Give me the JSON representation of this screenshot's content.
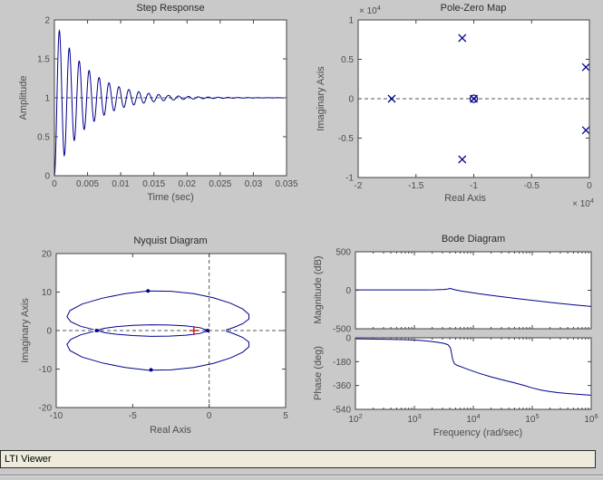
{
  "window": {
    "status_bar_text": "LTI Viewer"
  },
  "colors": {
    "figure_bg": "#c9c9c9",
    "plot_bg": "#ffffff",
    "axis": "#444444",
    "tick_text": "#4d4d4d",
    "title_text": "#2b2b2b",
    "curve": "#000090",
    "ref_line": "#555555",
    "critical_marker": "#cc2222"
  },
  "chart_data": [
    {
      "id": "step",
      "type": "line",
      "title": "Step Response",
      "xlabel": "Time (sec)",
      "ylabel": "Amplitude",
      "xlim": [
        0,
        0.035
      ],
      "ylim": [
        0,
        2
      ],
      "xticks": [
        0,
        0.005,
        0.01,
        0.015,
        0.02,
        0.025,
        0.03,
        0.035
      ],
      "xtick_labels": [
        "0",
        "0.005",
        "0.01",
        "0.015",
        "0.02",
        "0.025",
        "0.03",
        "0.035"
      ],
      "yticks": [
        0,
        0.5,
        1,
        1.5,
        2
      ],
      "ytick_labels": [
        "0",
        "0.5",
        "1",
        "1.5",
        "2"
      ],
      "ref_lines": [
        {
          "y": 1
        }
      ],
      "model": {
        "kind": "damped_step_response",
        "final_value": 1,
        "sigma": 200,
        "omega": 4200,
        "first_peak_value": 1.83,
        "first_peak_time": 0.001,
        "t_end": 0.035,
        "samples": 800
      }
    },
    {
      "id": "pzmap",
      "type": "scatter",
      "title": "Pole-Zero Map",
      "xlabel": "Real Axis",
      "ylabel": "Imaginary Axis",
      "axis_multiplier": {
        "text": "× 10",
        "exponent": "4"
      },
      "xlim": [
        -2,
        0
      ],
      "ylim": [
        -1,
        1
      ],
      "xticks": [
        -2,
        -1.5,
        -1,
        -0.5,
        0
      ],
      "xtick_labels": [
        "-2",
        "-1.5",
        "-1",
        "-0.5",
        "0"
      ],
      "yticks": [
        -1,
        -0.5,
        0,
        0.5,
        1
      ],
      "ytick_labels": [
        "-1",
        "-0.5",
        "0",
        "0.5",
        "1"
      ],
      "ref_lines": [
        {
          "y": 0
        }
      ],
      "poles": [
        [
          -1.71,
          0
        ],
        [
          -1.1,
          0.77
        ],
        [
          -1.1,
          -0.77
        ],
        [
          -1.0,
          0
        ],
        [
          -0.03,
          0.4
        ],
        [
          -0.03,
          -0.4
        ]
      ],
      "zeros": [
        [
          -1.0,
          0
        ]
      ]
    },
    {
      "id": "nyquist",
      "type": "line",
      "title": "Nyquist Diagram",
      "xlabel": "Real Axis",
      "ylabel": "Imaginary Axis",
      "xlim": [
        -10,
        5
      ],
      "ylim": [
        -20,
        20
      ],
      "xticks": [
        -10,
        -5,
        0,
        5
      ],
      "xtick_labels": [
        "-10",
        "-5",
        "0",
        "5"
      ],
      "yticks": [
        -20,
        -10,
        0,
        10,
        20
      ],
      "ytick_labels": [
        "-20",
        "-10",
        "0",
        "10",
        "20"
      ],
      "ref_lines": [
        {
          "x": 0
        },
        {
          "y": 0
        }
      ],
      "curves": [
        {
          "name": "outer-lobe-upper",
          "points": [
            [
              -7.55,
              0.25
            ],
            [
              -8.4,
              1.1
            ],
            [
              -9.05,
              2.3
            ],
            [
              -9.3,
              3.6
            ],
            [
              -9.1,
              5.2
            ],
            [
              -8.3,
              6.9
            ],
            [
              -7.0,
              8.4
            ],
            [
              -5.5,
              9.6
            ],
            [
              -4.0,
              10.3
            ],
            [
              -2.5,
              10.2
            ],
            [
              -1.0,
              9.6
            ],
            [
              0.3,
              8.5
            ],
            [
              1.4,
              7.1
            ],
            [
              2.2,
              5.6
            ],
            [
              2.6,
              4.2
            ],
            [
              2.6,
              3.0
            ],
            [
              2.2,
              1.8
            ],
            [
              1.6,
              0.8
            ],
            [
              1.1,
              0.15
            ]
          ]
        },
        {
          "name": "outer-lobe-lower",
          "points": [
            [
              -7.55,
              -0.25
            ],
            [
              -8.4,
              -1.1
            ],
            [
              -9.05,
              -2.3
            ],
            [
              -9.3,
              -3.6
            ],
            [
              -9.1,
              -5.2
            ],
            [
              -8.3,
              -6.9
            ],
            [
              -7.0,
              -8.4
            ],
            [
              -5.5,
              -9.6
            ],
            [
              -4.0,
              -10.3
            ],
            [
              -2.5,
              -10.2
            ],
            [
              -1.0,
              -9.6
            ],
            [
              0.3,
              -8.5
            ],
            [
              1.4,
              -7.1
            ],
            [
              2.2,
              -5.6
            ],
            [
              2.6,
              -4.2
            ],
            [
              2.6,
              -3.0
            ],
            [
              2.2,
              -1.8
            ],
            [
              1.6,
              -0.8
            ],
            [
              1.1,
              -0.15
            ]
          ]
        },
        {
          "name": "inner-loop",
          "points": [
            [
              -0.1,
              0.05
            ],
            [
              -0.6,
              0.75
            ],
            [
              -1.5,
              1.2
            ],
            [
              -2.6,
              1.45
            ],
            [
              -3.8,
              1.5
            ],
            [
              -5.0,
              1.35
            ],
            [
              -6.1,
              1.0
            ],
            [
              -6.9,
              0.55
            ],
            [
              -7.3,
              0.05
            ],
            [
              -6.9,
              -0.5
            ],
            [
              -6.1,
              -0.95
            ],
            [
              -5.0,
              -1.3
            ],
            [
              -3.8,
              -1.5
            ],
            [
              -2.6,
              -1.45
            ],
            [
              -1.5,
              -1.2
            ],
            [
              -0.6,
              -0.75
            ],
            [
              -0.1,
              -0.05
            ]
          ]
        }
      ],
      "markers": [
        {
          "type": "plus",
          "x": -1,
          "y": 0,
          "name": "critical-point"
        },
        {
          "type": "dot",
          "x": -4.0,
          "y": 10.3,
          "name": "direction-arrow"
        },
        {
          "type": "dot",
          "x": -3.8,
          "y": -10.2,
          "name": "direction-arrow"
        },
        {
          "type": "square",
          "x": -7.35,
          "y": 0,
          "name": "curve-node"
        },
        {
          "type": "square",
          "x": -0.1,
          "y": 0,
          "name": "curve-node"
        }
      ]
    },
    {
      "id": "bodemag",
      "type": "line",
      "title": "Bode Diagram",
      "ylabel": "Magnitude (dB)",
      "xscale": "log10",
      "xlim": [
        2,
        6
      ],
      "ylim": [
        -500,
        500
      ],
      "xticks": [
        2,
        3,
        4,
        5,
        6
      ],
      "show_xtick_labels": false,
      "yticks": [
        500,
        0,
        -500
      ],
      "ytick_labels": [
        "500",
        "0",
        "-500"
      ],
      "points": [
        [
          2,
          5
        ],
        [
          2.5,
          5
        ],
        [
          3,
          5
        ],
        [
          3.2,
          5
        ],
        [
          3.35,
          6
        ],
        [
          3.5,
          10
        ],
        [
          3.57,
          16
        ],
        [
          3.61,
          25
        ],
        [
          3.65,
          13
        ],
        [
          3.7,
          4
        ],
        [
          3.8,
          -10
        ],
        [
          3.95,
          -28
        ],
        [
          4.1,
          -46
        ],
        [
          4.3,
          -66
        ],
        [
          4.5,
          -85
        ],
        [
          4.7,
          -104
        ],
        [
          4.9,
          -122
        ],
        [
          5.1,
          -140
        ],
        [
          5.3,
          -157
        ],
        [
          5.5,
          -174
        ],
        [
          5.75,
          -193
        ],
        [
          6,
          -210
        ]
      ]
    },
    {
      "id": "bodephase",
      "type": "line",
      "xlabel": "Frequency  (rad/sec)",
      "ylabel": "Phase (deg)",
      "xscale": "log10",
      "xlim": [
        2,
        6
      ],
      "ylim": [
        -540,
        0
      ],
      "xticks": [
        2,
        3,
        4,
        5,
        6
      ],
      "xtick_pow10": true,
      "yticks": [
        0,
        -180,
        -360,
        -540
      ],
      "ytick_labels": [
        "0",
        "-180",
        "-360",
        "-540"
      ],
      "points": [
        [
          2,
          -8
        ],
        [
          2.4,
          -10
        ],
        [
          2.8,
          -14
        ],
        [
          3.05,
          -18
        ],
        [
          3.25,
          -26
        ],
        [
          3.4,
          -34
        ],
        [
          3.5,
          -42
        ],
        [
          3.57,
          -52
        ],
        [
          3.61,
          -75
        ],
        [
          3.63,
          -115
        ],
        [
          3.65,
          -165
        ],
        [
          3.68,
          -196
        ],
        [
          3.72,
          -207
        ],
        [
          3.8,
          -220
        ],
        [
          3.95,
          -245
        ],
        [
          4.1,
          -268
        ],
        [
          4.3,
          -295
        ],
        [
          4.5,
          -318
        ],
        [
          4.7,
          -340
        ],
        [
          4.85,
          -358
        ],
        [
          5.0,
          -378
        ],
        [
          5.15,
          -395
        ],
        [
          5.3,
          -406
        ],
        [
          5.45,
          -414
        ],
        [
          5.6,
          -420
        ],
        [
          5.8,
          -427
        ],
        [
          6,
          -433
        ]
      ]
    }
  ]
}
